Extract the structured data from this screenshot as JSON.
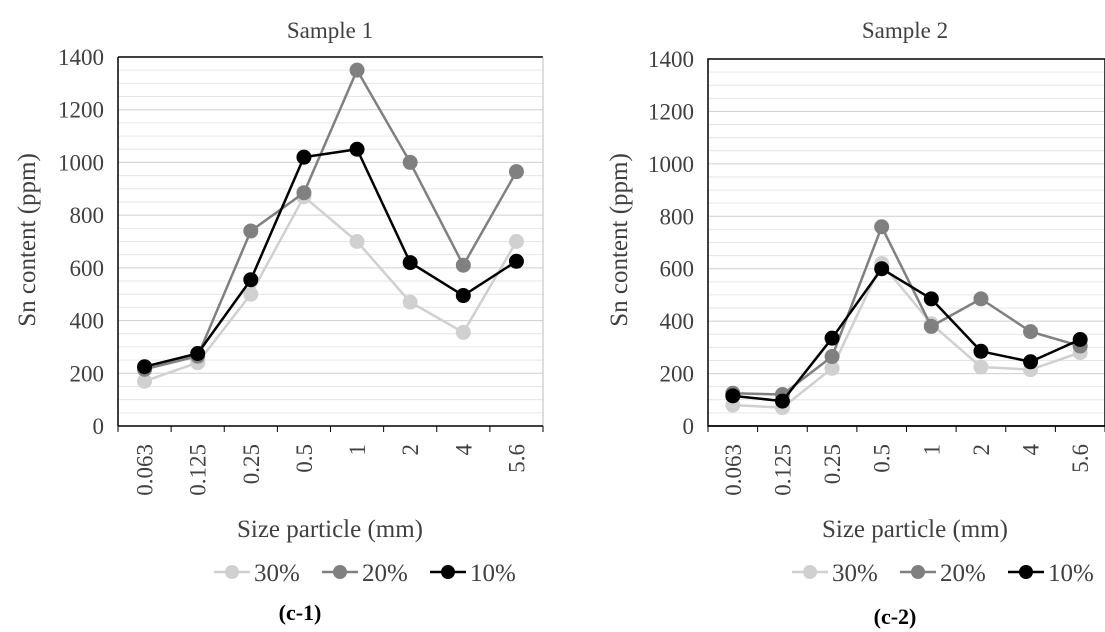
{
  "figure": {
    "series_colors": {
      "30%": "#d0d0d0",
      "20%": "#808080",
      "10%": "#000000"
    }
  },
  "chart_data": [
    {
      "type": "line",
      "title": "Sample 1",
      "xlabel": "Size particle (mm)",
      "ylabel": "Sn content (ppm)",
      "caption": "(c-1)",
      "categories": [
        "0.063",
        "0.125",
        "0.25",
        "0.5",
        "1",
        "2",
        "4",
        "5.6"
      ],
      "ylim": [
        0,
        1400
      ],
      "yticks": [
        "0",
        "200",
        "400",
        "600",
        "800",
        "1000",
        "1200",
        "1400"
      ],
      "grid": true,
      "legend": "bottom",
      "series": [
        {
          "name": "30%",
          "color": "#d0d0d0",
          "values": [
            170,
            240,
            500,
            870,
            700,
            470,
            355,
            700
          ]
        },
        {
          "name": "20%",
          "color": "#808080",
          "values": [
            215,
            265,
            740,
            885,
            1350,
            1000,
            610,
            965
          ]
        },
        {
          "name": "10%",
          "color": "#000000",
          "values": [
            225,
            275,
            555,
            1020,
            1050,
            620,
            495,
            625
          ]
        }
      ]
    },
    {
      "type": "line",
      "title": "Sample 2",
      "xlabel": "Size particle (mm)",
      "ylabel": "Sn content (ppm)",
      "caption": "(c-2)",
      "categories": [
        "0.063",
        "0.125",
        "0.25",
        "0.5",
        "1",
        "2",
        "4",
        "5.6"
      ],
      "ylim": [
        0,
        1400
      ],
      "yticks": [
        "0",
        "200",
        "400",
        "600",
        "800",
        "1000",
        "1200",
        "1400"
      ],
      "grid": true,
      "legend": "bottom",
      "series": [
        {
          "name": "30%",
          "color": "#d0d0d0",
          "values": [
            80,
            70,
            220,
            620,
            390,
            225,
            215,
            280
          ]
        },
        {
          "name": "20%",
          "color": "#808080",
          "values": [
            125,
            120,
            265,
            760,
            380,
            485,
            360,
            305
          ]
        },
        {
          "name": "10%",
          "color": "#000000",
          "values": [
            115,
            95,
            335,
            600,
            485,
            285,
            245,
            330
          ]
        }
      ]
    }
  ]
}
